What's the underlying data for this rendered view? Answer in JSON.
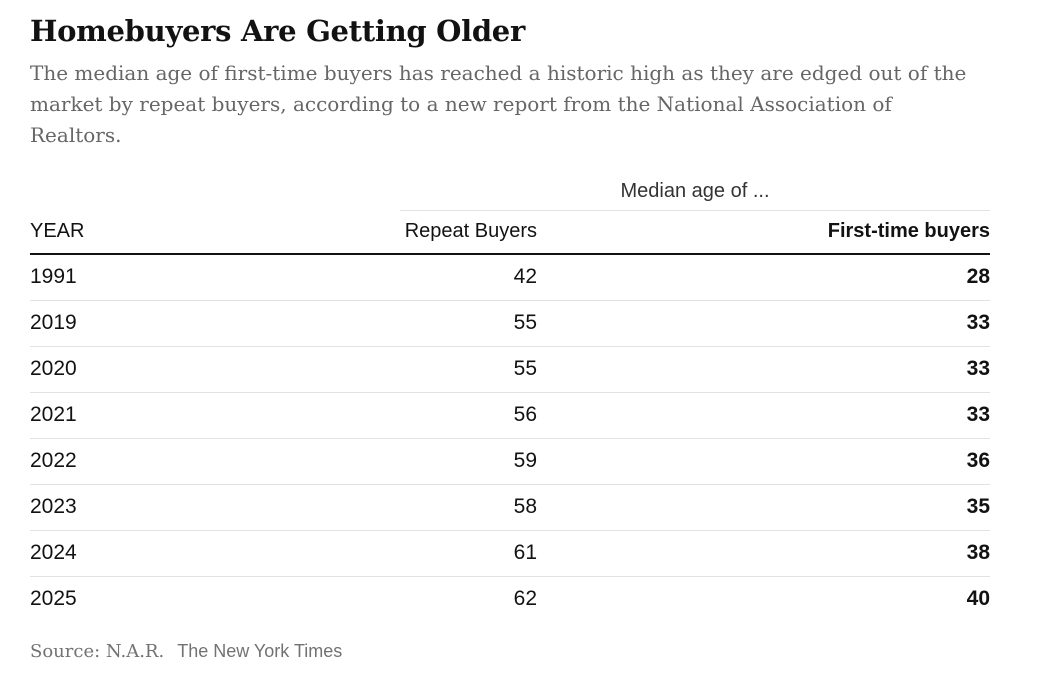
{
  "title": "Homebuyers Are Getting Older",
  "subtitle": "The median age of first-time buyers has reached a historic high as they are edged out of the market by repeat buyers, according to a new report from the National Association of Realtors.",
  "footer": {
    "source": "Source: N.A.R.",
    "credit": "The New York Times"
  },
  "colors": {
    "title_text": "#121212",
    "subtitle_text": "#666666",
    "footer_text": "#727272",
    "header_rule": "#121212",
    "row_separator": "#e2e2e2",
    "background": "#ffffff"
  },
  "chart_data": {
    "type": "table",
    "title": "Homebuyers Are Getting Older",
    "spanner": "Median age of ...",
    "columns": [
      "YEAR",
      "Repeat Buyers",
      "First-time buyers"
    ],
    "years": [
      "1991",
      "2019",
      "2020",
      "2021",
      "2022",
      "2023",
      "2024",
      "2025"
    ],
    "series": [
      {
        "name": "Repeat Buyers",
        "values": [
          42,
          55,
          55,
          56,
          59,
          58,
          61,
          62
        ]
      },
      {
        "name": "First-time buyers",
        "values": [
          28,
          33,
          33,
          33,
          36,
          35,
          38,
          40
        ]
      }
    ],
    "source": "Source: N.A.R.",
    "credit": "The New York Times",
    "layout": "spanner label centered over the two value columns; first-time buyer column bold; light gray row separators; heavy rule under column headers"
  }
}
